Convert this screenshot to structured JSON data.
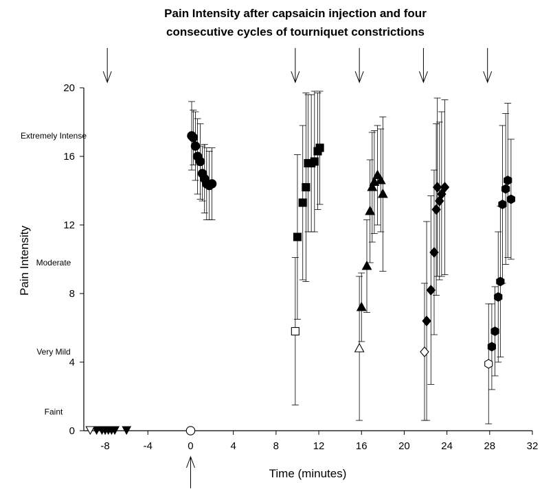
{
  "chart_data": {
    "type": "scatter",
    "title": "Pain Intensity after capsaicin injection and four consecutive cycles of tourniquet constrictions",
    "title_lines": [
      "Pain Intensity after capsaicin injection and four",
      "consecutive cycles of tourniquet constrictions"
    ],
    "xlabel": "Time (minutes)",
    "ylabel": "Pain Intensity",
    "xlim": [
      -10,
      32
    ],
    "ylim": [
      0,
      20
    ],
    "xticks": [
      "-8",
      "-4",
      "0",
      "4",
      "8",
      "12",
      "16",
      "20",
      "24",
      "28",
      "32"
    ],
    "xtick_values": [
      -8,
      -4,
      0,
      4,
      8,
      12,
      16,
      20,
      24,
      28,
      32
    ],
    "yticks": [
      "0",
      "4",
      "8",
      "12",
      "16",
      "20"
    ],
    "ytick_values": [
      0,
      4,
      8,
      12,
      16,
      20
    ],
    "y_category_labels": [
      {
        "label": "Extremely Intense",
        "y": 17.2
      },
      {
        "label": "Moderate",
        "y": 9.8
      },
      {
        "label": "Very Mild",
        "y": 4.6
      },
      {
        "label": "Faint",
        "y": 1.1
      }
    ],
    "grid": false,
    "top_arrows_x": [
      -7.8,
      9.8,
      15.8,
      21.8,
      27.8
    ],
    "bottom_arrows_x": [
      0
    ],
    "series": [
      {
        "marker": "triangle-down",
        "fill": "filled",
        "x": [
          -8.8,
          -8.3,
          -8.0,
          -7.7,
          -7.4,
          -7.1,
          -6.0
        ],
        "y": [
          0,
          0,
          0,
          0,
          0,
          0,
          0
        ],
        "err": [
          0,
          0,
          0,
          0,
          0,
          0,
          0
        ]
      },
      {
        "marker": "triangle-down",
        "fill": "open",
        "x": [
          -9.4
        ],
        "y": [
          0
        ],
        "err": [
          0
        ]
      },
      {
        "marker": "circle",
        "fill": "open",
        "x": [
          0
        ],
        "y": [
          0
        ],
        "err": [
          0
        ]
      },
      {
        "marker": "circle",
        "fill": "filled",
        "x": [
          0.1,
          0.25,
          0.45,
          0.65,
          0.9,
          1.1,
          1.3,
          1.5,
          1.75,
          2.0
        ],
        "y": [
          17.2,
          17.1,
          16.6,
          16.0,
          15.7,
          15.0,
          14.7,
          14.4,
          14.3,
          14.4
        ],
        "err": [
          2.0,
          1.6,
          2.0,
          2.2,
          2.2,
          1.6,
          2.0,
          2.1,
          2.0,
          2.1
        ]
      },
      {
        "marker": "square",
        "fill": "open",
        "x": [
          9.8
        ],
        "y": [
          5.8
        ],
        "err": [
          4.3
        ]
      },
      {
        "marker": "square",
        "fill": "filled",
        "x": [
          10.0,
          10.5,
          10.8,
          11.0,
          11.3,
          11.6,
          11.9,
          12.1
        ],
        "y": [
          11.3,
          13.3,
          14.2,
          15.6,
          15.6,
          15.7,
          16.3,
          16.5
        ],
        "err": [
          4.8,
          4.5,
          5.5,
          4.0,
          4.0,
          4.1,
          3.4,
          3.3
        ]
      },
      {
        "marker": "triangle-up",
        "fill": "open",
        "x": [
          15.8
        ],
        "y": [
          4.8
        ],
        "err": [
          4.2
        ]
      },
      {
        "marker": "triangle-up",
        "fill": "filled",
        "x": [
          16.0,
          16.5,
          16.8,
          17.0,
          17.2,
          17.5,
          17.8,
          18.0
        ],
        "y": [
          7.2,
          9.6,
          12.8,
          14.2,
          14.5,
          14.9,
          14.6,
          13.8
        ],
        "err": [
          2.0,
          2.7,
          3.0,
          3.2,
          3.0,
          2.9,
          3.0,
          4.5
        ]
      },
      {
        "marker": "diamond",
        "fill": "open",
        "x": [
          21.9
        ],
        "y": [
          4.6
        ],
        "err": [
          4.0
        ]
      },
      {
        "marker": "diamond",
        "fill": "filled",
        "x": [
          22.1,
          22.5,
          22.8,
          23.0,
          23.1,
          23.3,
          23.5,
          23.8
        ],
        "y": [
          6.4,
          8.2,
          10.4,
          12.9,
          14.2,
          13.4,
          13.8,
          14.2
        ],
        "err": [
          5.8,
          5.5,
          4.8,
          5.0,
          5.2,
          4.6,
          4.8,
          5.1
        ]
      },
      {
        "marker": "hexagon",
        "fill": "open",
        "x": [
          27.9
        ],
        "y": [
          3.9
        ],
        "err": [
          3.5
        ]
      },
      {
        "marker": "hexagon",
        "fill": "filled",
        "x": [
          28.2,
          28.5,
          28.8,
          29.0,
          29.2,
          29.5,
          29.7,
          30.0
        ],
        "y": [
          4.9,
          5.8,
          7.8,
          8.7,
          13.2,
          14.1,
          14.6,
          13.5
        ],
        "err": [
          2.5,
          2.6,
          3.8,
          4.4,
          4.6,
          4.4,
          4.5,
          3.5
        ]
      }
    ]
  }
}
